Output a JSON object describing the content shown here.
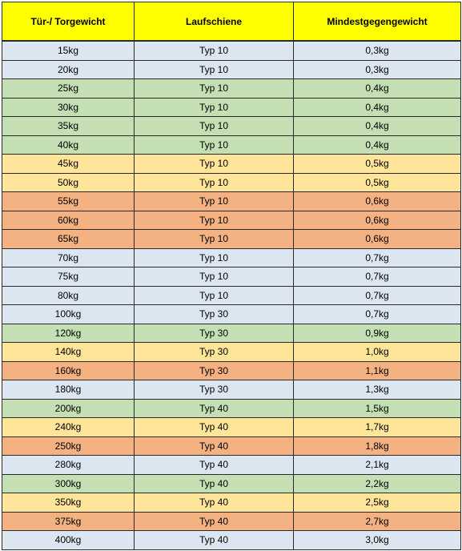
{
  "table": {
    "headers": [
      "Tür-/ Torgewicht",
      "Laufschiene",
      "Mindestgegengewicht"
    ],
    "colors": {
      "header": "#ffff00",
      "blue": "#dce6f1",
      "green": "#c4dfb4",
      "yellow": "#ffe59a",
      "orange": "#f4b283"
    },
    "rows": [
      {
        "weight": "15kg",
        "rail": "Typ 10",
        "counterweight": "0,3kg",
        "color": "blue"
      },
      {
        "weight": "20kg",
        "rail": "Typ 10",
        "counterweight": "0,3kg",
        "color": "blue"
      },
      {
        "weight": "25kg",
        "rail": "Typ 10",
        "counterweight": "0,4kg",
        "color": "green"
      },
      {
        "weight": "30kg",
        "rail": "Typ 10",
        "counterweight": "0,4kg",
        "color": "green"
      },
      {
        "weight": "35kg",
        "rail": "Typ 10",
        "counterweight": "0,4kg",
        "color": "green"
      },
      {
        "weight": "40kg",
        "rail": "Typ 10",
        "counterweight": "0,4kg",
        "color": "green"
      },
      {
        "weight": "45kg",
        "rail": "Typ 10",
        "counterweight": "0,5kg",
        "color": "yellow"
      },
      {
        "weight": "50kg",
        "rail": "Typ 10",
        "counterweight": "0,5kg",
        "color": "yellow"
      },
      {
        "weight": "55kg",
        "rail": "Typ 10",
        "counterweight": "0,6kg",
        "color": "orange"
      },
      {
        "weight": "60kg",
        "rail": "Typ 10",
        "counterweight": "0,6kg",
        "color": "orange"
      },
      {
        "weight": "65kg",
        "rail": "Typ 10",
        "counterweight": "0,6kg",
        "color": "orange"
      },
      {
        "weight": "70kg",
        "rail": "Typ 10",
        "counterweight": "0,7kg",
        "color": "blue"
      },
      {
        "weight": "75kg",
        "rail": "Typ 10",
        "counterweight": "0,7kg",
        "color": "blue"
      },
      {
        "weight": "80kg",
        "rail": "Typ 10",
        "counterweight": "0,7kg",
        "color": "blue"
      },
      {
        "weight": "100kg",
        "rail": "Typ 30",
        "counterweight": "0,7kg",
        "color": "blue"
      },
      {
        "weight": "120kg",
        "rail": "Typ 30",
        "counterweight": "0,9kg",
        "color": "green"
      },
      {
        "weight": "140kg",
        "rail": "Typ 30",
        "counterweight": "1,0kg",
        "color": "yellow"
      },
      {
        "weight": "160kg",
        "rail": "Typ 30",
        "counterweight": "1,1kg",
        "color": "orange"
      },
      {
        "weight": "180kg",
        "rail": "Typ 30",
        "counterweight": "1,3kg",
        "color": "blue"
      },
      {
        "weight": "200kg",
        "rail": "Typ 40",
        "counterweight": "1,5kg",
        "color": "green"
      },
      {
        "weight": "240kg",
        "rail": "Typ 40",
        "counterweight": "1,7kg",
        "color": "yellow"
      },
      {
        "weight": "250kg",
        "rail": "Typ 40",
        "counterweight": "1,8kg",
        "color": "orange"
      },
      {
        "weight": "280kg",
        "rail": "Typ 40",
        "counterweight": "2,1kg",
        "color": "blue"
      },
      {
        "weight": "300kg",
        "rail": "Typ 40",
        "counterweight": "2,2kg",
        "color": "green"
      },
      {
        "weight": "350kg",
        "rail": "Typ 40",
        "counterweight": "2,5kg",
        "color": "yellow"
      },
      {
        "weight": "375kg",
        "rail": "Typ 40",
        "counterweight": "2,7kg",
        "color": "orange"
      },
      {
        "weight": "400kg",
        "rail": "Typ 40",
        "counterweight": "3,0kg",
        "color": "blue"
      }
    ]
  }
}
